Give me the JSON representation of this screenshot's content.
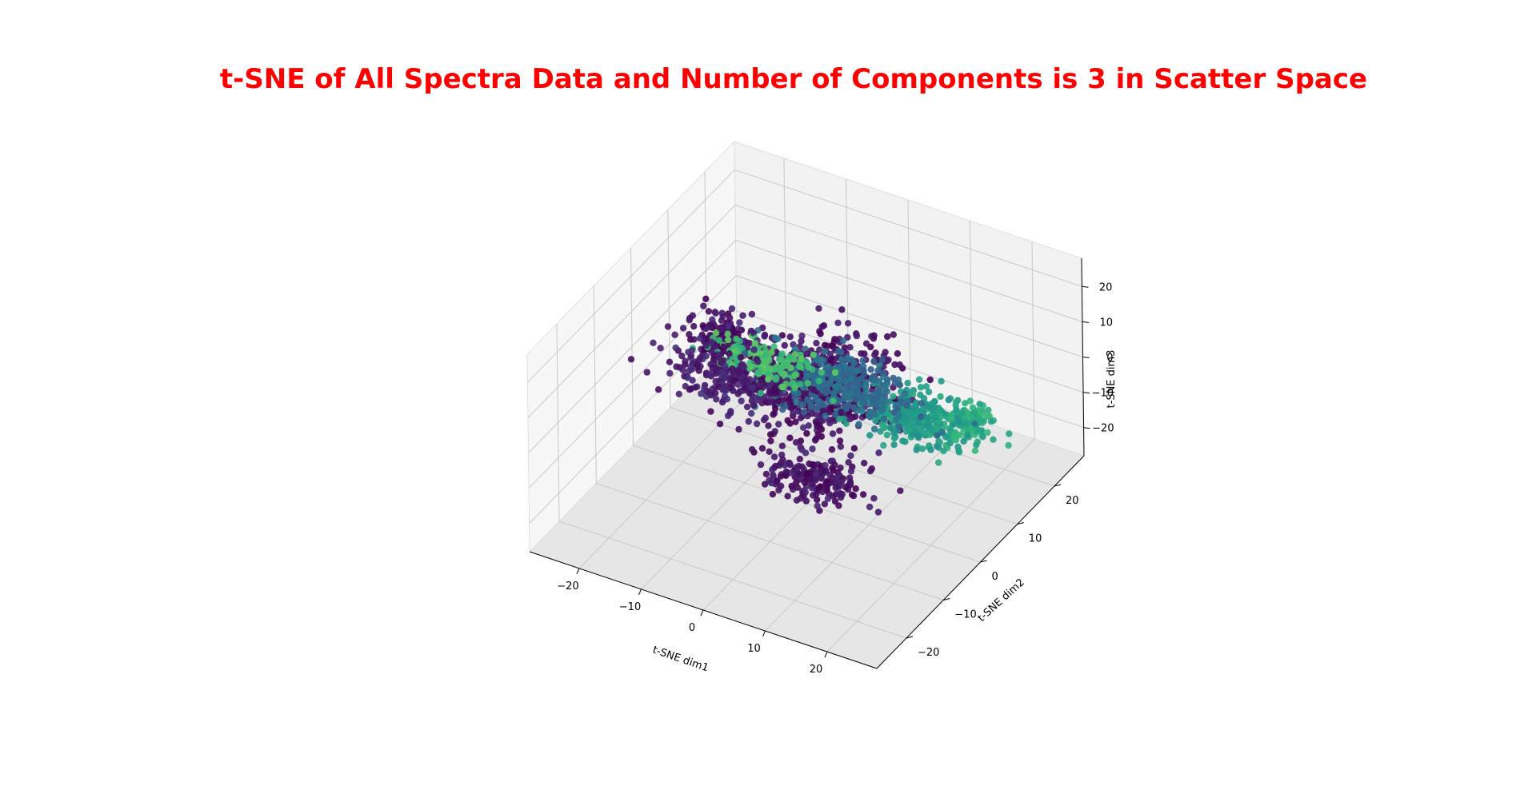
{
  "chart_data": {
    "type": "scatter",
    "projection": "3d",
    "title": "t-SNE of All Spectra Data and Number of Components is 3 in Scatter Space",
    "title_color": "#ff0000",
    "xlabel": "t-SNE dim1",
    "ylabel": "t-SNE dim2",
    "zlabel": "t-SNE dim3",
    "xlim": [
      -28,
      28
    ],
    "ylim": [
      -28,
      28
    ],
    "zlim": [
      -28,
      28
    ],
    "xticks": [
      -20,
      -10,
      0,
      10,
      20
    ],
    "yticks": [
      -20,
      -10,
      0,
      10,
      20
    ],
    "zticks": [
      -20,
      -10,
      0,
      10,
      20
    ],
    "xtick_labels": [
      "−20",
      "−10",
      "0",
      "10",
      "20"
    ],
    "ytick_labels": [
      "−20",
      "−10",
      "0",
      "10",
      "20"
    ],
    "ztick_labels": [
      "−20",
      "−10",
      "0",
      "10",
      "20"
    ],
    "grid": true,
    "legend": "none",
    "colormap": "viridis",
    "pane_colors": [
      "#f2f2f2",
      "#ebebeb",
      "#e6e6e6"
    ],
    "clusters": [
      {
        "center": [
          -2,
          8,
          -4
        ],
        "spread": [
          9,
          8,
          6
        ],
        "color_value": 0.05,
        "count": 520
      },
      {
        "center": [
          -16,
          4,
          5
        ],
        "spread": [
          4,
          4,
          4
        ],
        "color_value": 0.05,
        "count": 160
      },
      {
        "center": [
          -8,
          -6,
          10
        ],
        "spread": [
          8,
          5,
          5
        ],
        "color_value": 0.08,
        "count": 260
      },
      {
        "center": [
          4,
          -4,
          -14
        ],
        "spread": [
          7,
          5,
          3
        ],
        "color_value": 0.05,
        "count": 180
      },
      {
        "center": [
          4,
          2,
          6
        ],
        "spread": [
          9,
          5,
          4
        ],
        "color_value": 0.35,
        "count": 320
      },
      {
        "center": [
          -4,
          -4,
          14
        ],
        "spread": [
          7,
          3,
          2
        ],
        "color_value": 0.7,
        "count": 150
      },
      {
        "center": [
          14,
          6,
          -2
        ],
        "spread": [
          6,
          4,
          4
        ],
        "color_value": 0.55,
        "count": 260
      },
      {
        "center": [
          20,
          10,
          -4
        ],
        "spread": [
          3,
          3,
          3
        ],
        "color_value": 0.62,
        "count": 120
      }
    ]
  }
}
